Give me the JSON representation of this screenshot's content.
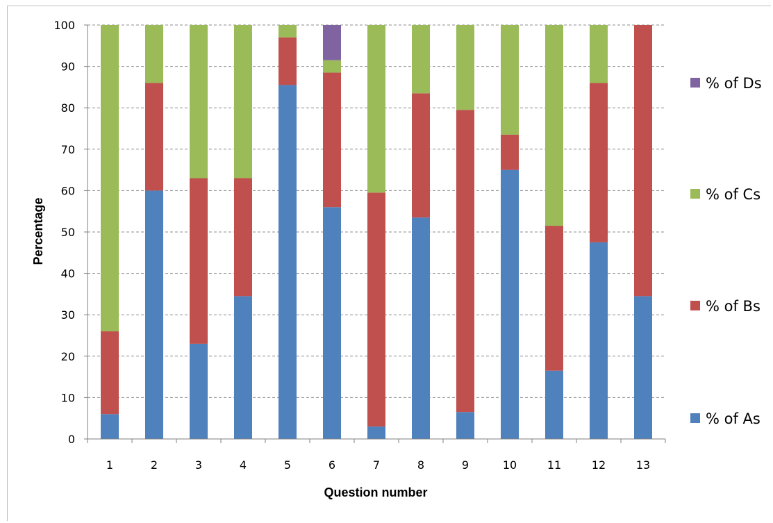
{
  "chart_data": {
    "type": "bar",
    "stacked": true,
    "title": "",
    "xlabel": "Question number",
    "ylabel": "Percentage",
    "ylim": [
      0,
      100
    ],
    "yticks": [
      0,
      10,
      20,
      30,
      40,
      50,
      60,
      70,
      80,
      90,
      100
    ],
    "grid": "horizontal dashed",
    "legend_position": "right",
    "categories": [
      "1",
      "2",
      "3",
      "4",
      "5",
      "6",
      "7",
      "8",
      "9",
      "10",
      "11",
      "12",
      "13"
    ],
    "series": [
      {
        "name": "% of As",
        "color": "#4f81bd",
        "values": [
          6,
          60,
          23,
          34.5,
          85.5,
          56,
          3,
          53.5,
          6.5,
          65,
          16.5,
          47.5,
          34.5
        ]
      },
      {
        "name": "% of Bs",
        "color": "#c0504d",
        "values": [
          20,
          26,
          40,
          28.5,
          11.5,
          32.5,
          56.5,
          30,
          73,
          8.5,
          35,
          38.5,
          65.5
        ]
      },
      {
        "name": "% of Cs",
        "color": "#9bbb59",
        "values": [
          74,
          14,
          37,
          37,
          3,
          3,
          40.5,
          16.5,
          20.5,
          26.5,
          48.5,
          14,
          0
        ]
      },
      {
        "name": "% of Ds",
        "color": "#8064a2",
        "values": [
          0,
          0,
          0,
          0,
          0,
          8.5,
          0,
          0,
          0,
          0,
          0,
          0,
          0
        ]
      }
    ]
  }
}
